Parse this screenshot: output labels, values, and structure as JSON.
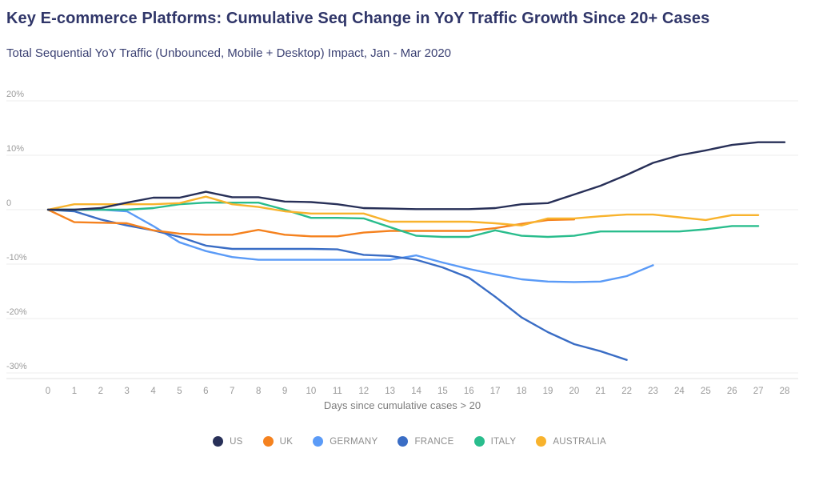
{
  "header": {
    "title": "Key E-commerce Platforms: Cumulative Seq Change in YoY Traffic Growth Since 20+ Cases",
    "subtitle": "Total Sequential YoY Traffic (Unbounced, Mobile + Desktop) Impact, Jan - Mar 2020"
  },
  "chart_data": {
    "type": "line",
    "title": "Key E-commerce Platforms: Cumulative Seq Change in YoY Traffic Growth Since 20+ Cases",
    "subtitle": "Total Sequential YoY Traffic (Unbounced, Mobile + Desktop) Impact, Jan - Mar 2020",
    "xlabel": "Days since cumulative cases > 20",
    "ylabel": "",
    "xlim": [
      0,
      28
    ],
    "ylim": [
      -30,
      20
    ],
    "grid": true,
    "legend_position": "bottom",
    "x_ticks": [
      0,
      1,
      2,
      3,
      4,
      5,
      6,
      7,
      8,
      9,
      10,
      11,
      12,
      13,
      14,
      15,
      16,
      17,
      18,
      19,
      20,
      21,
      22,
      23,
      24,
      25,
      26,
      27,
      28
    ],
    "y_ticks": [
      {
        "label": "20%",
        "value": 20
      },
      {
        "label": "10%",
        "value": 10
      },
      {
        "label": "0",
        "value": 0
      },
      {
        "label": "-10%",
        "value": -10
      },
      {
        "label": "-20%",
        "value": -20
      },
      {
        "label": "-30%",
        "value": -30
      }
    ],
    "series": [
      {
        "name": "GERMANY",
        "color": "#5b9bf7",
        "points": [
          [
            0,
            0
          ],
          [
            1,
            0
          ],
          [
            2,
            0
          ],
          [
            3,
            -0.3
          ],
          [
            4,
            -3.0
          ],
          [
            5,
            -6.0
          ],
          [
            6,
            -7.6
          ],
          [
            7,
            -8.7
          ],
          [
            8,
            -9.2
          ],
          [
            9,
            -9.2
          ],
          [
            10,
            -9.2
          ],
          [
            11,
            -9.2
          ],
          [
            12,
            -9.2
          ],
          [
            13,
            -9.2
          ],
          [
            14,
            -8.4
          ],
          [
            15,
            -9.7
          ],
          [
            16,
            -10.9
          ],
          [
            17,
            -11.9
          ],
          [
            18,
            -12.8
          ],
          [
            19,
            -13.2
          ],
          [
            20,
            -13.3
          ],
          [
            21,
            -13.2
          ],
          [
            22,
            -12.2
          ],
          [
            23,
            -10.2
          ]
        ]
      },
      {
        "name": "FRANCE",
        "color": "#3a6dc5",
        "points": [
          [
            0,
            0
          ],
          [
            1,
            -0.3
          ],
          [
            2,
            -1.8
          ],
          [
            3,
            -2.9
          ],
          [
            4,
            -3.8
          ],
          [
            5,
            -5.0
          ],
          [
            6,
            -6.6
          ],
          [
            7,
            -7.2
          ],
          [
            8,
            -7.2
          ],
          [
            9,
            -7.2
          ],
          [
            10,
            -7.2
          ],
          [
            11,
            -7.3
          ],
          [
            12,
            -8.3
          ],
          [
            13,
            -8.5
          ],
          [
            14,
            -9.2
          ],
          [
            15,
            -10.6
          ],
          [
            16,
            -12.5
          ],
          [
            17,
            -16.0
          ],
          [
            18,
            -19.8
          ],
          [
            19,
            -22.5
          ],
          [
            20,
            -24.7
          ],
          [
            21,
            -26.0
          ],
          [
            22,
            -27.6
          ]
        ]
      },
      {
        "name": "UK",
        "color": "#f5821f",
        "points": [
          [
            0,
            0
          ],
          [
            1,
            -2.3
          ],
          [
            2,
            -2.4
          ],
          [
            3,
            -2.5
          ],
          [
            4,
            -3.8
          ],
          [
            5,
            -4.4
          ],
          [
            6,
            -4.6
          ],
          [
            7,
            -4.6
          ],
          [
            8,
            -3.7
          ],
          [
            9,
            -4.6
          ],
          [
            10,
            -4.9
          ],
          [
            11,
            -4.9
          ],
          [
            12,
            -4.2
          ],
          [
            13,
            -3.9
          ],
          [
            14,
            -3.9
          ],
          [
            15,
            -3.9
          ],
          [
            16,
            -3.9
          ],
          [
            17,
            -3.4
          ],
          [
            18,
            -2.6
          ],
          [
            19,
            -1.9
          ],
          [
            20,
            -1.8
          ]
        ]
      },
      {
        "name": "ITALY",
        "color": "#2abd8d",
        "points": [
          [
            0,
            0
          ],
          [
            1,
            0
          ],
          [
            2,
            0
          ],
          [
            3,
            0
          ],
          [
            4,
            0.3
          ],
          [
            5,
            1.0
          ],
          [
            6,
            1.3
          ],
          [
            7,
            1.3
          ],
          [
            8,
            1.3
          ],
          [
            9,
            0
          ],
          [
            10,
            -1.5
          ],
          [
            11,
            -1.5
          ],
          [
            12,
            -1.6
          ],
          [
            13,
            -3.2
          ],
          [
            14,
            -4.8
          ],
          [
            15,
            -5.0
          ],
          [
            16,
            -5.0
          ],
          [
            17,
            -3.8
          ],
          [
            18,
            -4.8
          ],
          [
            19,
            -5.0
          ],
          [
            20,
            -4.8
          ],
          [
            21,
            -4.0
          ],
          [
            22,
            -4.0
          ],
          [
            23,
            -4.0
          ],
          [
            24,
            -4.0
          ],
          [
            25,
            -3.6
          ],
          [
            26,
            -3.0
          ],
          [
            27,
            -3.0
          ]
        ]
      },
      {
        "name": "AUSTRALIA",
        "color": "#f8b32d",
        "points": [
          [
            0,
            0
          ],
          [
            1,
            1.0
          ],
          [
            2,
            1.0
          ],
          [
            3,
            1.0
          ],
          [
            4,
            1.0
          ],
          [
            5,
            1.2
          ],
          [
            6,
            2.4
          ],
          [
            7,
            1.0
          ],
          [
            8,
            0.5
          ],
          [
            9,
            -0.3
          ],
          [
            10,
            -0.7
          ],
          [
            11,
            -0.7
          ],
          [
            12,
            -0.7
          ],
          [
            13,
            -2.2
          ],
          [
            14,
            -2.2
          ],
          [
            15,
            -2.2
          ],
          [
            16,
            -2.2
          ],
          [
            17,
            -2.5
          ],
          [
            18,
            -2.9
          ],
          [
            19,
            -1.6
          ],
          [
            20,
            -1.6
          ],
          [
            21,
            -1.2
          ],
          [
            22,
            -0.9
          ],
          [
            23,
            -0.9
          ],
          [
            24,
            -1.4
          ],
          [
            25,
            -1.9
          ],
          [
            26,
            -1.0
          ],
          [
            27,
            -1.0
          ]
        ]
      },
      {
        "name": "US",
        "color": "#283058",
        "points": [
          [
            0,
            0
          ],
          [
            1,
            0
          ],
          [
            2,
            0.3
          ],
          [
            3,
            1.3
          ],
          [
            4,
            2.2
          ],
          [
            5,
            2.2
          ],
          [
            6,
            3.3
          ],
          [
            7,
            2.3
          ],
          [
            8,
            2.3
          ],
          [
            9,
            1.5
          ],
          [
            10,
            1.4
          ],
          [
            11,
            1.0
          ],
          [
            12,
            0.3
          ],
          [
            13,
            0.2
          ],
          [
            14,
            0.1
          ],
          [
            15,
            0.1
          ],
          [
            16,
            0.1
          ],
          [
            17,
            0.3
          ],
          [
            18,
            1.0
          ],
          [
            19,
            1.2
          ],
          [
            20,
            2.8
          ],
          [
            21,
            4.4
          ],
          [
            22,
            6.4
          ],
          [
            23,
            8.6
          ],
          [
            24,
            10.0
          ],
          [
            25,
            10.9
          ],
          [
            26,
            11.9
          ],
          [
            27,
            12.4
          ],
          [
            28,
            12.4
          ]
        ]
      }
    ],
    "legend_order": [
      "US",
      "UK",
      "GERMANY",
      "FRANCE",
      "ITALY",
      "AUSTRALIA"
    ]
  }
}
